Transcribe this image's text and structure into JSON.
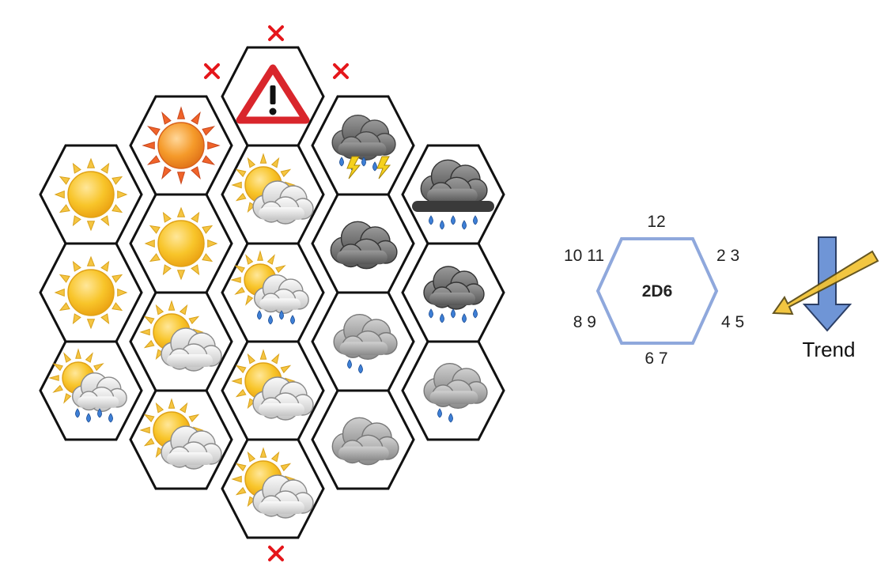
{
  "grid": {
    "cells": [
      {
        "id": "hazard",
        "icon": "hazard-warning-icon"
      },
      {
        "id": "r1c1",
        "icon": "hot-sun-icon"
      },
      {
        "id": "r1c3",
        "icon": "thunderstorm-icon"
      },
      {
        "id": "r2c0",
        "icon": "sun-icon"
      },
      {
        "id": "r2c2",
        "icon": "sun-cloud-icon"
      },
      {
        "id": "r2c4",
        "icon": "heavy-rain-icon"
      },
      {
        "id": "r3c1",
        "icon": "sun-icon"
      },
      {
        "id": "r3c3",
        "icon": "dark-cloud-icon"
      },
      {
        "id": "r4c0",
        "icon": "sun-icon"
      },
      {
        "id": "r4c2",
        "icon": "sun-rain-icon"
      },
      {
        "id": "r4c4",
        "icon": "dark-cloud-rain-icon"
      },
      {
        "id": "r5c1",
        "icon": "sun-cloud-icon"
      },
      {
        "id": "r5c3",
        "icon": "cloud-rain-icon"
      },
      {
        "id": "r6c0",
        "icon": "sun-rain-icon"
      },
      {
        "id": "r6c2",
        "icon": "sun-cloud-icon"
      },
      {
        "id": "r6c4",
        "icon": "cloud-rain-icon"
      },
      {
        "id": "r7c1",
        "icon": "sun-cloud-icon"
      },
      {
        "id": "r7c3",
        "icon": "cloud-icon"
      },
      {
        "id": "r8c2",
        "icon": "sun-cloud-icon"
      }
    ],
    "blocked_marks": [
      "x",
      "x",
      "x",
      "x"
    ]
  },
  "dice": {
    "center": "2D6",
    "top": "12",
    "upper_right": "2 3",
    "lower_right": "4 5",
    "bottom": "6 7",
    "lower_left": "8 9",
    "upper_left": "10 11"
  },
  "trend": {
    "label": "Trend"
  },
  "colors": {
    "grid_border": "#111111",
    "dice_hex_border": "#8fa8dc",
    "x_mark": "#e5161b",
    "trend_down_arrow": "#6f95d6",
    "trend_diag_arrow": "#f2c233",
    "hazard_red": "#d9262c",
    "sun_yellow": "#f8c52a",
    "hot_sun_orange": "#f07a24"
  }
}
